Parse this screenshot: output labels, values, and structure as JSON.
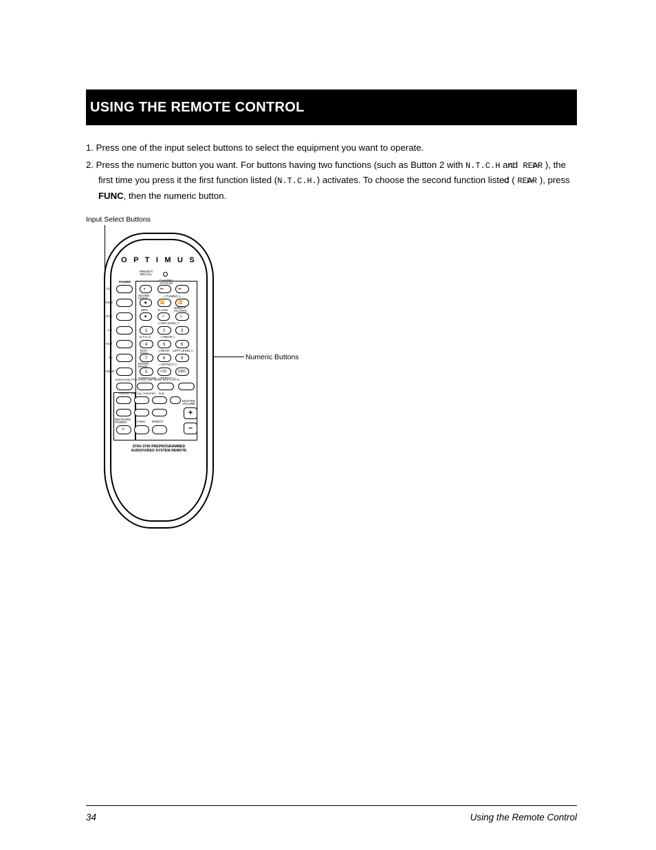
{
  "title": "USING THE REMOTE CONTROL",
  "steps": [
    {
      "n": "1.",
      "text": "Press one of the input select buttons to select the equipment you want to operate."
    },
    {
      "n": "2.",
      "html": "Press the numeric button you want. For buttons having two functions (such as Button 2 with <span class='mono'>N.T.C.H</span> and <span class='tri'>◁</span> <span class='mono'>REAR</span> <span class='tri'>▷</span>), the first time you press it the first function listed (<span class='mono'>N.T.C.H.</span>) activates. To choose the second function listed (<span class='tri'>◁</span> <span class='mono'>REAR</span> <span class='tri'>▷</span>), press <b>FUNC</b>, then the numeric button."
    }
  ],
  "callout_input": "Input Select Buttons",
  "callout_numeric": "Numeric Buttons",
  "remote": {
    "brand": "O P T I M U S",
    "preset_recall": "PRESET/\nRECALL",
    "bottom_line1": "STAV-3790 PREPROGRAMMED",
    "bottom_line2": "AUDIO/VIDEO SYSTEM REMOTE",
    "input_labels": [
      "CD",
      "TAPE",
      "DVD",
      "LD",
      "VCR",
      "TV",
      "TUNER"
    ],
    "power_label": "POWER",
    "row1_labels": {
      "center_top": "CHANNEL\nSTATION"
    },
    "row2_labels": {
      "left": "SOUND\nMODE",
      "mid": "TUNING"
    },
    "row3_labels": {
      "a": "MPX",
      "b": "CLASS",
      "c": "DIRECT\nACCESS"
    },
    "row35_label": "SW LEVEL",
    "numrow1": [
      "1",
      "2",
      "3"
    ],
    "numrow1_lbls": [
      "",
      "N.T.C.H",
      "REAR"
    ],
    "numrow2": [
      "4",
      "5",
      "6"
    ],
    "numrow2_lbls": [
      "SURR",
      "",
      ""
    ],
    "numrow3": [
      "7",
      "8",
      "9"
    ],
    "numrow3_lbls_top": [
      "TEST\nTONE",
      "REAR",
      "LEFT LEVEL"
    ],
    "numrow4": [
      "0",
      "+10",
      "DISC"
    ],
    "numrow4_lbls_top": [
      "ENTER\nMODE",
      "EFFECT",
      ""
    ],
    "surr_row_top": [
      "SURROUND",
      "PRO LOGIC",
      "DSP MODE",
      "MULTI CH IN"
    ],
    "surr_row": [
      "",
      "",
      "",
      ""
    ],
    "bottom_row_top": [
      "PRESET",
      "VIRTUAL",
      "THEATER",
      "SUB"
    ],
    "last_row_top": [
      "RECEIVER\nPOWER",
      "FUNC",
      "DIRECT",
      "MASTER\nVOLUME"
    ],
    "plus": "+",
    "minus": "–"
  },
  "page_number": "34",
  "footer_title": "Using the Remote Control"
}
